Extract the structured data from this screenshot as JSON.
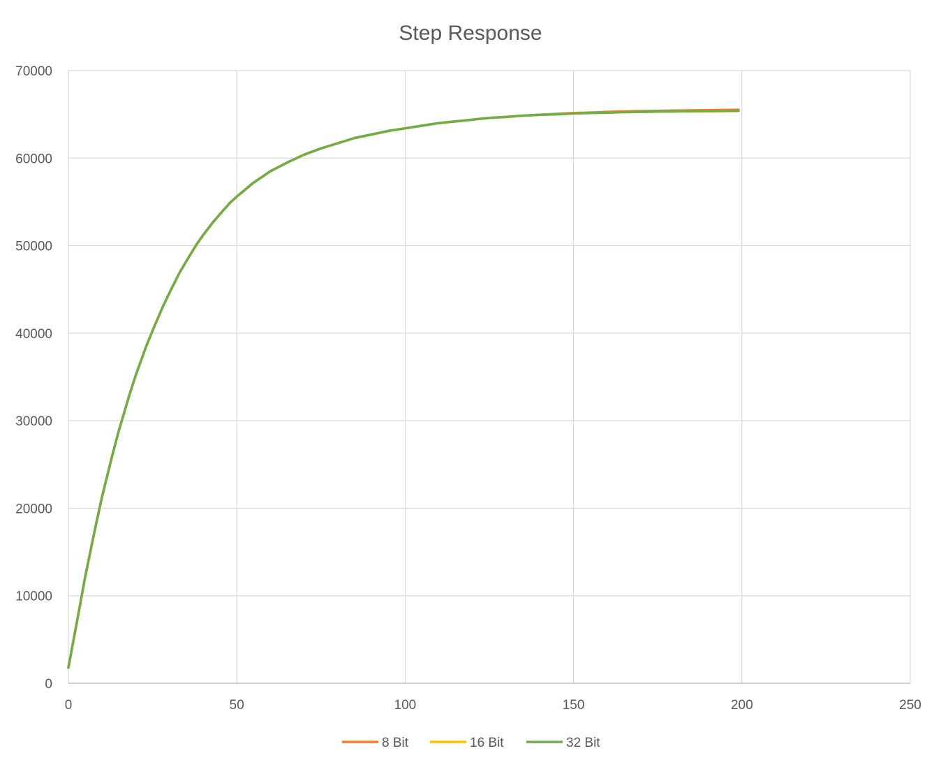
{
  "chart_data": {
    "type": "line",
    "title": "Step Response",
    "xlabel": "",
    "ylabel": "",
    "xlim": [
      0,
      250
    ],
    "ylim": [
      0,
      70000
    ],
    "x_ticks": [
      0,
      50,
      100,
      150,
      200,
      250
    ],
    "y_ticks": [
      0,
      10000,
      20000,
      30000,
      40000,
      50000,
      60000,
      70000
    ],
    "x_tick_labels": [
      "0",
      "50",
      "100",
      "150",
      "200",
      "250"
    ],
    "y_tick_labels": [
      "0",
      "10000",
      "20000",
      "30000",
      "40000",
      "50000",
      "60000",
      "70000"
    ],
    "grid": true,
    "legend_position": "bottom",
    "x": [
      0,
      3,
      5,
      8,
      10,
      13,
      15,
      18,
      20,
      23,
      25,
      28,
      30,
      33,
      35,
      38,
      40,
      43,
      45,
      48,
      50,
      55,
      60,
      65,
      70,
      75,
      80,
      85,
      90,
      95,
      100,
      105,
      110,
      115,
      120,
      125,
      130,
      135,
      140,
      145,
      150,
      155,
      160,
      165,
      170,
      175,
      180,
      185,
      190,
      195,
      199
    ],
    "series": [
      {
        "name": "8 Bit",
        "color": "#ED7D31",
        "values": [
          1800,
          8000,
          12200,
          17800,
          21300,
          26000,
          28900,
          32800,
          35200,
          38400,
          40300,
          43000,
          44600,
          46900,
          48200,
          50100,
          51200,
          52700,
          53600,
          54900,
          55600,
          57200,
          58500,
          59500,
          60400,
          61100,
          61700,
          62300,
          62700,
          63100,
          63400,
          63700,
          64000,
          64200,
          64400,
          64600,
          64700,
          64850,
          64950,
          65050,
          65150,
          65200,
          65280,
          65330,
          65380,
          65400,
          65430,
          65450,
          65470,
          65500,
          65520
        ]
      },
      {
        "name": "16 Bit",
        "color": "#FFC000",
        "values": [
          1800,
          8000,
          12200,
          17800,
          21300,
          26000,
          28900,
          32800,
          35200,
          38400,
          40300,
          43000,
          44600,
          46900,
          48200,
          50100,
          51200,
          52700,
          53600,
          54900,
          55600,
          57200,
          58500,
          59500,
          60400,
          61100,
          61700,
          62300,
          62700,
          63100,
          63400,
          63700,
          64000,
          64200,
          64400,
          64600,
          64700,
          64850,
          64950,
          65000,
          65100,
          65150,
          65200,
          65250,
          65280,
          65310,
          65330,
          65350,
          65370,
          65380,
          65400
        ]
      },
      {
        "name": "32 Bit",
        "color": "#70AD47",
        "values": [
          1800,
          8000,
          12200,
          17800,
          21300,
          26000,
          28900,
          32800,
          35200,
          38400,
          40300,
          43000,
          44600,
          46900,
          48200,
          50100,
          51200,
          52700,
          53600,
          54900,
          55600,
          57200,
          58500,
          59500,
          60400,
          61100,
          61700,
          62300,
          62700,
          63100,
          63400,
          63700,
          64000,
          64200,
          64400,
          64600,
          64700,
          64850,
          64950,
          65000,
          65100,
          65150,
          65200,
          65250,
          65280,
          65310,
          65330,
          65350,
          65370,
          65380,
          65400
        ]
      }
    ]
  }
}
